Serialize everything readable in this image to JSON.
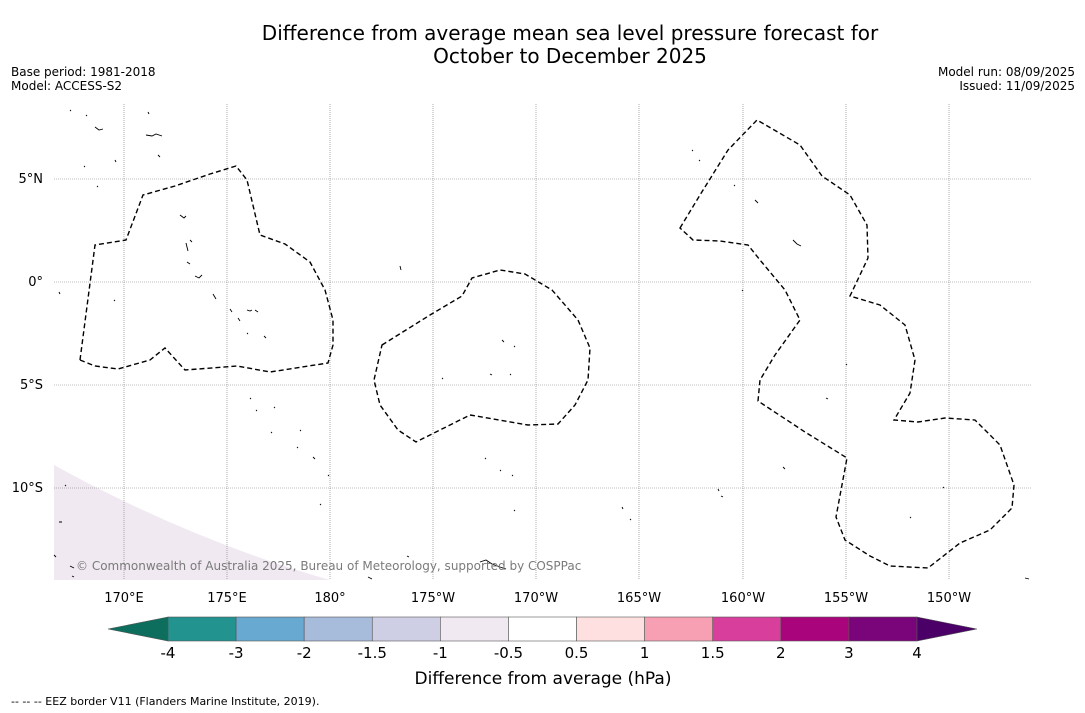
{
  "title_line1": "Difference from average mean sea level pressure forecast for",
  "title_line2": "October to December 2025",
  "base_period": "Base period: 1981-2018",
  "model": "Model: ACCESS-S2",
  "model_run": "Model run: 08/09/2025",
  "issued": "Issued: 11/09/2025",
  "lat_labels": [
    "5°N",
    "0°",
    "5°S",
    "10°S"
  ],
  "lon_labels": [
    "170°E",
    "175°E",
    "180°",
    "175°W",
    "170°W",
    "165°W",
    "160°W",
    "155°W",
    "150°W"
  ],
  "copyright": "© Commonwealth of Australia 2025, Bureau of Meteorology, supported by COSPPac",
  "colorbar": {
    "label": "Difference from average (hPa)",
    "ticks": [
      "-4",
      "-3",
      "-2",
      "-1.5",
      "-1",
      "-0.5",
      "0.5",
      "1",
      "1.5",
      "2",
      "3",
      "4"
    ],
    "colors": [
      "#0d6e5e",
      "#22938f",
      "#67a9d0",
      "#a7bbdb",
      "#ceceE5",
      "#f0e9f1",
      "#ffffff",
      "#fde0df",
      "#f7a0b4",
      "#d83f9c",
      "#a9047c",
      "#7a047a",
      "#4a0066"
    ]
  },
  "footer": "--  --  -- EEZ border V11 (Flanders Marine Institute, 2019)."
}
